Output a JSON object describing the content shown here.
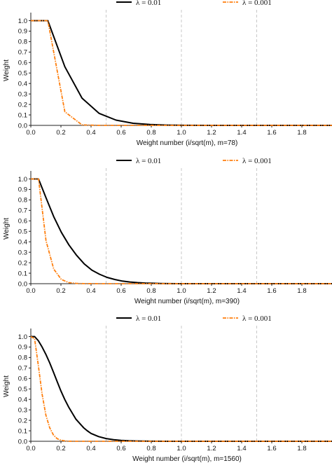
{
  "chart_data": [
    {
      "type": "line",
      "xlabel": "Weight number (i/sqrt(m), m=78)",
      "ylabel": "Weight",
      "xlim": [
        0,
        2.0
      ],
      "ylim": [
        0,
        1.05
      ],
      "xticks": [
        "0.0",
        "0.2",
        "0.4",
        "0.6",
        "0.8",
        "1.0",
        "1.2",
        "1.4",
        "1.6",
        "1.8"
      ],
      "yticks": [
        "0.0",
        "0.1",
        "0.2",
        "0.3",
        "0.4",
        "0.5",
        "0.6",
        "0.7",
        "0.8",
        "0.9",
        "1.0"
      ],
      "vlines": [
        0.5,
        1.0,
        1.5
      ],
      "legend_position": "top",
      "series": [
        {
          "name": "λ = 0.01",
          "color": "#000000",
          "style": "solid",
          "x": [
            0.0,
            0.113,
            0.226,
            0.34,
            0.453,
            0.566,
            0.679,
            0.792,
            0.906,
            1.019,
            1.2,
            1.5,
            2.0
          ],
          "y": [
            1.0,
            1.0,
            0.56,
            0.26,
            0.115,
            0.05,
            0.02,
            0.008,
            0.003,
            0.001,
            0.0,
            0.0,
            0.0
          ]
        },
        {
          "name": "λ = 0.001",
          "color": "#ff7f0e",
          "style": "dashed",
          "x": [
            0.0,
            0.113,
            0.226,
            0.34,
            0.453,
            0.566,
            1.0,
            2.0
          ],
          "y": [
            1.0,
            1.0,
            0.13,
            0.005,
            0.0,
            0.0,
            0.0,
            0.0
          ]
        }
      ]
    },
    {
      "type": "line",
      "xlabel": "Weight number (i/sqrt(m), m=390)",
      "ylabel": "Weight",
      "xlim": [
        0,
        2.0
      ],
      "ylim": [
        0,
        1.05
      ],
      "xticks": [
        "0.0",
        "0.2",
        "0.4",
        "0.6",
        "0.8",
        "1.0",
        "1.2",
        "1.4",
        "1.6",
        "1.8"
      ],
      "yticks": [
        "0.0",
        "0.1",
        "0.2",
        "0.3",
        "0.4",
        "0.5",
        "0.6",
        "0.7",
        "0.8",
        "0.9",
        "1.0"
      ],
      "vlines": [
        0.5,
        1.0,
        1.5
      ],
      "legend_position": "top",
      "series": [
        {
          "name": "λ = 0.01",
          "color": "#000000",
          "style": "solid",
          "x": [
            0.0,
            0.051,
            0.101,
            0.152,
            0.203,
            0.253,
            0.304,
            0.354,
            0.405,
            0.456,
            0.506,
            0.557,
            0.608,
            0.658,
            0.709,
            0.76,
            0.81,
            0.86,
            0.91,
            1.0,
            1.2,
            1.5,
            2.0
          ],
          "y": [
            1.0,
            1.0,
            0.82,
            0.64,
            0.49,
            0.37,
            0.27,
            0.19,
            0.13,
            0.09,
            0.06,
            0.04,
            0.025,
            0.016,
            0.01,
            0.006,
            0.004,
            0.002,
            0.001,
            0.0,
            0.0,
            0.0,
            0.0
          ]
        },
        {
          "name": "λ = 0.001",
          "color": "#ff7f0e",
          "style": "dashed",
          "x": [
            0.0,
            0.051,
            0.101,
            0.152,
            0.203,
            0.253,
            0.304,
            0.354,
            0.5,
            1.0,
            2.0
          ],
          "y": [
            1.0,
            1.0,
            0.41,
            0.14,
            0.04,
            0.01,
            0.003,
            0.001,
            0.0,
            0.0,
            0.0
          ]
        }
      ]
    },
    {
      "type": "line",
      "xlabel": "Weight number (i/sqrt(m), m=1560)",
      "ylabel": "Weight",
      "xlim": [
        0,
        2.0
      ],
      "ylim": [
        0,
        1.05
      ],
      "xticks": [
        "0.0",
        "0.2",
        "0.4",
        "0.6",
        "0.8",
        "1.0",
        "1.2",
        "1.4",
        "1.6",
        "1.8"
      ],
      "yticks": [
        "0.0",
        "0.1",
        "0.2",
        "0.3",
        "0.4",
        "0.5",
        "0.6",
        "0.7",
        "0.8",
        "0.9",
        "1.0"
      ],
      "vlines": [
        0.5,
        1.0,
        1.5
      ],
      "legend_position": "top",
      "series": [
        {
          "name": "λ = 0.01",
          "color": "#000000",
          "style": "solid",
          "x": [
            0.0,
            0.025,
            0.05,
            0.075,
            0.1,
            0.125,
            0.15,
            0.175,
            0.2,
            0.225,
            0.25,
            0.275,
            0.3,
            0.325,
            0.35,
            0.375,
            0.4,
            0.45,
            0.5,
            0.55,
            0.6,
            0.65,
            0.7,
            0.75,
            0.8,
            0.9,
            1.0,
            1.2,
            1.5,
            2.0
          ],
          "y": [
            1.0,
            1.0,
            0.96,
            0.9,
            0.83,
            0.75,
            0.66,
            0.57,
            0.48,
            0.4,
            0.33,
            0.27,
            0.21,
            0.17,
            0.13,
            0.1,
            0.075,
            0.045,
            0.026,
            0.015,
            0.009,
            0.005,
            0.003,
            0.002,
            0.001,
            0.0,
            0.0,
            0.0,
            0.0,
            0.0
          ]
        },
        {
          "name": "λ = 0.001",
          "color": "#ff7f0e",
          "style": "dashed",
          "x": [
            0.0,
            0.025,
            0.05,
            0.075,
            0.1,
            0.125,
            0.15,
            0.175,
            0.2,
            0.225,
            0.25,
            0.3,
            0.5,
            1.0,
            2.0
          ],
          "y": [
            1.0,
            0.98,
            0.72,
            0.45,
            0.25,
            0.13,
            0.06,
            0.025,
            0.01,
            0.004,
            0.001,
            0.0,
            0.0,
            0.0,
            0.0
          ]
        }
      ]
    }
  ]
}
